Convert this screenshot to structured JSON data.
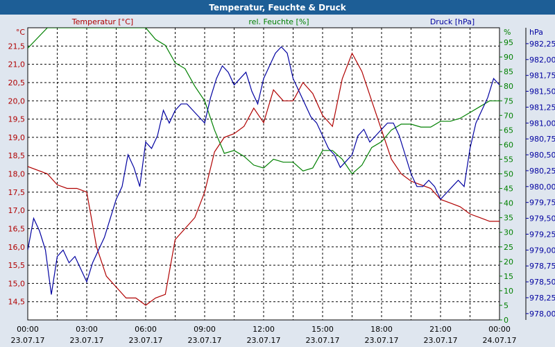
{
  "title": "Temperatur, Feuchte & Druck",
  "colors": {
    "temperature": "#b00000",
    "humidity": "#008000",
    "pressure": "#0000a0",
    "frame": "#1d5e96",
    "background": "#dfe6ef",
    "plot_bg": "#ffffff"
  },
  "chart_data": {
    "type": "line",
    "grid": true,
    "x_ticks": [
      {
        "time": "00:00",
        "date": "23.07.17"
      },
      {
        "time": "03:00",
        "date": "23.07.17"
      },
      {
        "time": "06:00",
        "date": "23.07.17"
      },
      {
        "time": "09:00",
        "date": "23.07.17"
      },
      {
        "time": "12:00",
        "date": "23.07.17"
      },
      {
        "time": "15:00",
        "date": "23.07.17"
      },
      {
        "time": "18:00",
        "date": "23.07.17"
      },
      {
        "time": "21:00",
        "date": "23.07.17"
      },
      {
        "time": "00:00",
        "date": "24.07.17"
      }
    ],
    "x_range_hours": [
      0,
      24
    ],
    "axes": {
      "temperature": {
        "unit": "°C",
        "label": "Temperatur [°C]",
        "range": [
          14.0,
          22.0
        ],
        "ticks": [
          "14,5",
          "15,0",
          "15,5",
          "16,0",
          "16,5",
          "17,0",
          "17,5",
          "18,0",
          "18,5",
          "19,0",
          "19,5",
          "20,0",
          "20,5",
          "21,0",
          "21,5"
        ],
        "tick_values": [
          14.5,
          15.0,
          15.5,
          16.0,
          16.5,
          17.0,
          17.5,
          18.0,
          18.5,
          19.0,
          19.5,
          20.0,
          20.5,
          21.0,
          21.5
        ]
      },
      "humidity": {
        "unit": "%",
        "label": "rel. Feuchte [%]",
        "range": [
          0,
          100
        ],
        "ticks": [
          "0",
          "5",
          "10",
          "15",
          "20",
          "25",
          "30",
          "35",
          "40",
          "45",
          "50",
          "55",
          "60",
          "65",
          "70",
          "75",
          "80",
          "85",
          "90",
          "95"
        ],
        "tick_values": [
          0,
          5,
          10,
          15,
          20,
          25,
          30,
          35,
          40,
          45,
          50,
          55,
          60,
          65,
          70,
          75,
          80,
          85,
          90,
          95
        ]
      },
      "pressure": {
        "unit": "hPa",
        "label": "Druck [hPa]",
        "range": [
          977.9,
          982.5
        ],
        "ticks": [
          "978,00",
          "978,25",
          "978,50",
          "978,75",
          "979,00",
          "979,25",
          "979,50",
          "979,75",
          "980,00",
          "980,25",
          "980,50",
          "980,75",
          "981,00",
          "981,25",
          "981,50",
          "981,75",
          "982,00",
          "982,25"
        ],
        "tick_values": [
          978.0,
          978.25,
          978.5,
          978.75,
          979.0,
          979.25,
          979.5,
          979.75,
          980.0,
          980.25,
          980.5,
          980.75,
          981.0,
          981.25,
          981.5,
          981.75,
          982.0,
          982.25
        ]
      }
    },
    "series": [
      {
        "name": "Temperatur [°C]",
        "axis": "temperature",
        "points": [
          [
            0,
            18.2
          ],
          [
            1,
            18.0
          ],
          [
            1.5,
            17.7
          ],
          [
            2,
            17.6
          ],
          [
            2.5,
            17.6
          ],
          [
            3,
            17.5
          ],
          [
            3.5,
            16.0
          ],
          [
            4,
            15.2
          ],
          [
            4.5,
            14.9
          ],
          [
            5,
            14.6
          ],
          [
            5.5,
            14.6
          ],
          [
            6,
            14.4
          ],
          [
            6.5,
            14.6
          ],
          [
            7,
            14.7
          ],
          [
            7.5,
            16.2
          ],
          [
            8,
            16.5
          ],
          [
            8.5,
            16.8
          ],
          [
            9,
            17.5
          ],
          [
            9.5,
            18.6
          ],
          [
            10,
            19.0
          ],
          [
            10.5,
            19.1
          ],
          [
            11,
            19.3
          ],
          [
            11.5,
            19.8
          ],
          [
            12,
            19.4
          ],
          [
            12.5,
            20.3
          ],
          [
            13,
            20.0
          ],
          [
            13.5,
            20.0
          ],
          [
            14,
            20.5
          ],
          [
            14.5,
            20.2
          ],
          [
            15,
            19.6
          ],
          [
            15.5,
            19.3
          ],
          [
            16,
            20.6
          ],
          [
            16.5,
            21.3
          ],
          [
            17,
            20.8
          ],
          [
            17.5,
            20.0
          ],
          [
            18,
            19.2
          ],
          [
            18.5,
            18.4
          ],
          [
            19,
            18.0
          ],
          [
            19.5,
            17.8
          ],
          [
            20,
            17.7
          ],
          [
            20.5,
            17.6
          ],
          [
            21,
            17.3
          ],
          [
            21.5,
            17.2
          ],
          [
            22,
            17.1
          ],
          [
            22.5,
            16.9
          ],
          [
            23,
            16.8
          ],
          [
            23.5,
            16.7
          ],
          [
            24,
            16.7
          ]
        ]
      },
      {
        "name": "rel. Feuchte [%]",
        "axis": "humidity",
        "points": [
          [
            0,
            93
          ],
          [
            1,
            100
          ],
          [
            2,
            100
          ],
          [
            3,
            100
          ],
          [
            4,
            100
          ],
          [
            5,
            100
          ],
          [
            6,
            100
          ],
          [
            6.5,
            96
          ],
          [
            7,
            94
          ],
          [
            7.5,
            88
          ],
          [
            8,
            86
          ],
          [
            8.5,
            80
          ],
          [
            9,
            75
          ],
          [
            9.5,
            65
          ],
          [
            10,
            57
          ],
          [
            10.5,
            58
          ],
          [
            11,
            56
          ],
          [
            11.5,
            53
          ],
          [
            12,
            52
          ],
          [
            12.5,
            55
          ],
          [
            13,
            54
          ],
          [
            13.5,
            54
          ],
          [
            14,
            51
          ],
          [
            14.5,
            52
          ],
          [
            15,
            58
          ],
          [
            15.5,
            58
          ],
          [
            16,
            55
          ],
          [
            16.5,
            50
          ],
          [
            17,
            53
          ],
          [
            17.5,
            59
          ],
          [
            18,
            61
          ],
          [
            18.5,
            65
          ],
          [
            19,
            67
          ],
          [
            19.5,
            67
          ],
          [
            20,
            66
          ],
          [
            20.5,
            66
          ],
          [
            21,
            68
          ],
          [
            21.5,
            68
          ],
          [
            22,
            69
          ],
          [
            22.5,
            71
          ],
          [
            23,
            73
          ],
          [
            23.5,
            75
          ],
          [
            24,
            75
          ]
        ]
      },
      {
        "name": "Druck [hPa]",
        "axis": "pressure",
        "points": [
          [
            0,
            979.0
          ],
          [
            0.3,
            979.5
          ],
          [
            0.6,
            979.3
          ],
          [
            0.9,
            979.0
          ],
          [
            1.2,
            978.3
          ],
          [
            1.5,
            978.9
          ],
          [
            1.8,
            979.0
          ],
          [
            2.1,
            978.8
          ],
          [
            2.4,
            978.9
          ],
          [
            2.7,
            978.7
          ],
          [
            3,
            978.5
          ],
          [
            3.3,
            978.8
          ],
          [
            3.6,
            979.0
          ],
          [
            3.9,
            979.2
          ],
          [
            4.2,
            979.5
          ],
          [
            4.5,
            979.8
          ],
          [
            4.8,
            980.0
          ],
          [
            5.1,
            980.5
          ],
          [
            5.4,
            980.3
          ],
          [
            5.7,
            980.0
          ],
          [
            6,
            980.7
          ],
          [
            6.3,
            980.6
          ],
          [
            6.6,
            980.8
          ],
          [
            6.9,
            981.2
          ],
          [
            7.2,
            981.0
          ],
          [
            7.5,
            981.2
          ],
          [
            7.8,
            981.3
          ],
          [
            8.1,
            981.3
          ],
          [
            8.4,
            981.2
          ],
          [
            8.7,
            981.1
          ],
          [
            9,
            981.0
          ],
          [
            9.3,
            981.4
          ],
          [
            9.6,
            981.7
          ],
          [
            9.9,
            981.9
          ],
          [
            10.2,
            981.8
          ],
          [
            10.5,
            981.6
          ],
          [
            10.8,
            981.7
          ],
          [
            11.1,
            981.8
          ],
          [
            11.4,
            981.5
          ],
          [
            11.7,
            981.3
          ],
          [
            12,
            981.7
          ],
          [
            12.3,
            981.9
          ],
          [
            12.6,
            982.1
          ],
          [
            12.9,
            982.2
          ],
          [
            13.2,
            982.1
          ],
          [
            13.5,
            981.7
          ],
          [
            13.8,
            981.5
          ],
          [
            14.1,
            981.3
          ],
          [
            14.4,
            981.1
          ],
          [
            14.7,
            981.0
          ],
          [
            15,
            980.8
          ],
          [
            15.3,
            980.6
          ],
          [
            15.6,
            980.5
          ],
          [
            15.9,
            980.3
          ],
          [
            16.2,
            980.4
          ],
          [
            16.5,
            980.5
          ],
          [
            16.8,
            980.8
          ],
          [
            17.1,
            980.9
          ],
          [
            17.4,
            980.7
          ],
          [
            17.7,
            980.8
          ],
          [
            18,
            980.9
          ],
          [
            18.3,
            981.0
          ],
          [
            18.6,
            981.0
          ],
          [
            18.9,
            980.8
          ],
          [
            19.2,
            980.5
          ],
          [
            19.5,
            980.2
          ],
          [
            19.8,
            980.0
          ],
          [
            20.1,
            980.0
          ],
          [
            20.4,
            980.1
          ],
          [
            20.7,
            980.0
          ],
          [
            21,
            979.8
          ],
          [
            21.3,
            979.9
          ],
          [
            21.6,
            980.0
          ],
          [
            21.9,
            980.1
          ],
          [
            22.2,
            980.0
          ],
          [
            22.5,
            980.6
          ],
          [
            22.8,
            981.0
          ],
          [
            23.1,
            981.2
          ],
          [
            23.4,
            981.4
          ],
          [
            23.7,
            981.7
          ],
          [
            24,
            981.6
          ]
        ]
      }
    ]
  }
}
